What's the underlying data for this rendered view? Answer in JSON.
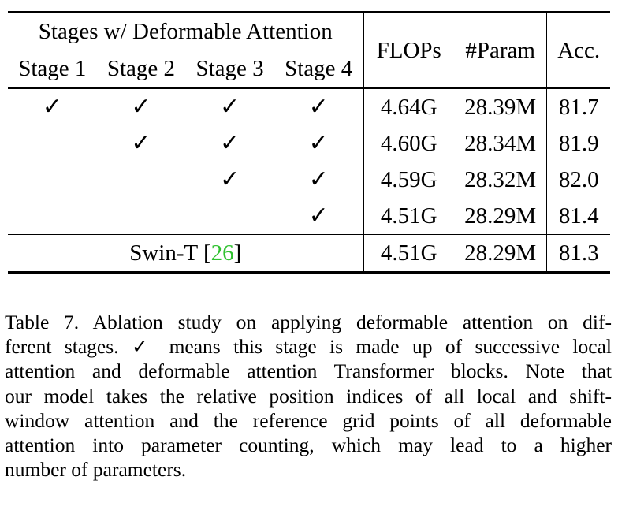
{
  "table": {
    "group_header": "Stages w/ Deformable Attention",
    "stage_headers": [
      "Stage 1",
      "Stage 2",
      "Stage 3",
      "Stage 4"
    ],
    "metric_headers": {
      "flops": "FLOPs",
      "param": "#Param",
      "acc": "Acc."
    },
    "check_symbol": "✓",
    "rows": [
      {
        "stages": [
          true,
          true,
          true,
          true
        ],
        "flops": "4.64G",
        "param": "28.39M",
        "acc": "81.7"
      },
      {
        "stages": [
          false,
          true,
          true,
          true
        ],
        "flops": "4.60G",
        "param": "28.34M",
        "acc": "81.9"
      },
      {
        "stages": [
          false,
          false,
          true,
          true
        ],
        "flops": "4.59G",
        "param": "28.32M",
        "acc": "82.0"
      },
      {
        "stages": [
          false,
          false,
          false,
          true
        ],
        "flops": "4.51G",
        "param": "28.29M",
        "acc": "81.4"
      }
    ],
    "baseline": {
      "name": "Swin-T",
      "cite_open": "[",
      "cite": "26",
      "cite_close": "]",
      "flops": "4.51G",
      "param": "28.29M",
      "acc": "81.3"
    }
  },
  "caption": {
    "lines": [
      "Table 7. Ablation study on applying deformable attention on dif-",
      "ferent stages. ✓ means this stage is made up of successive local",
      "attention and deformable attention Transformer blocks. Note that",
      "our model takes the relative position indices of all local and shift-",
      "window attention and the reference grid points of all deformable",
      "attention into parameter counting, which may lead to a higher",
      "number of parameters."
    ]
  }
}
